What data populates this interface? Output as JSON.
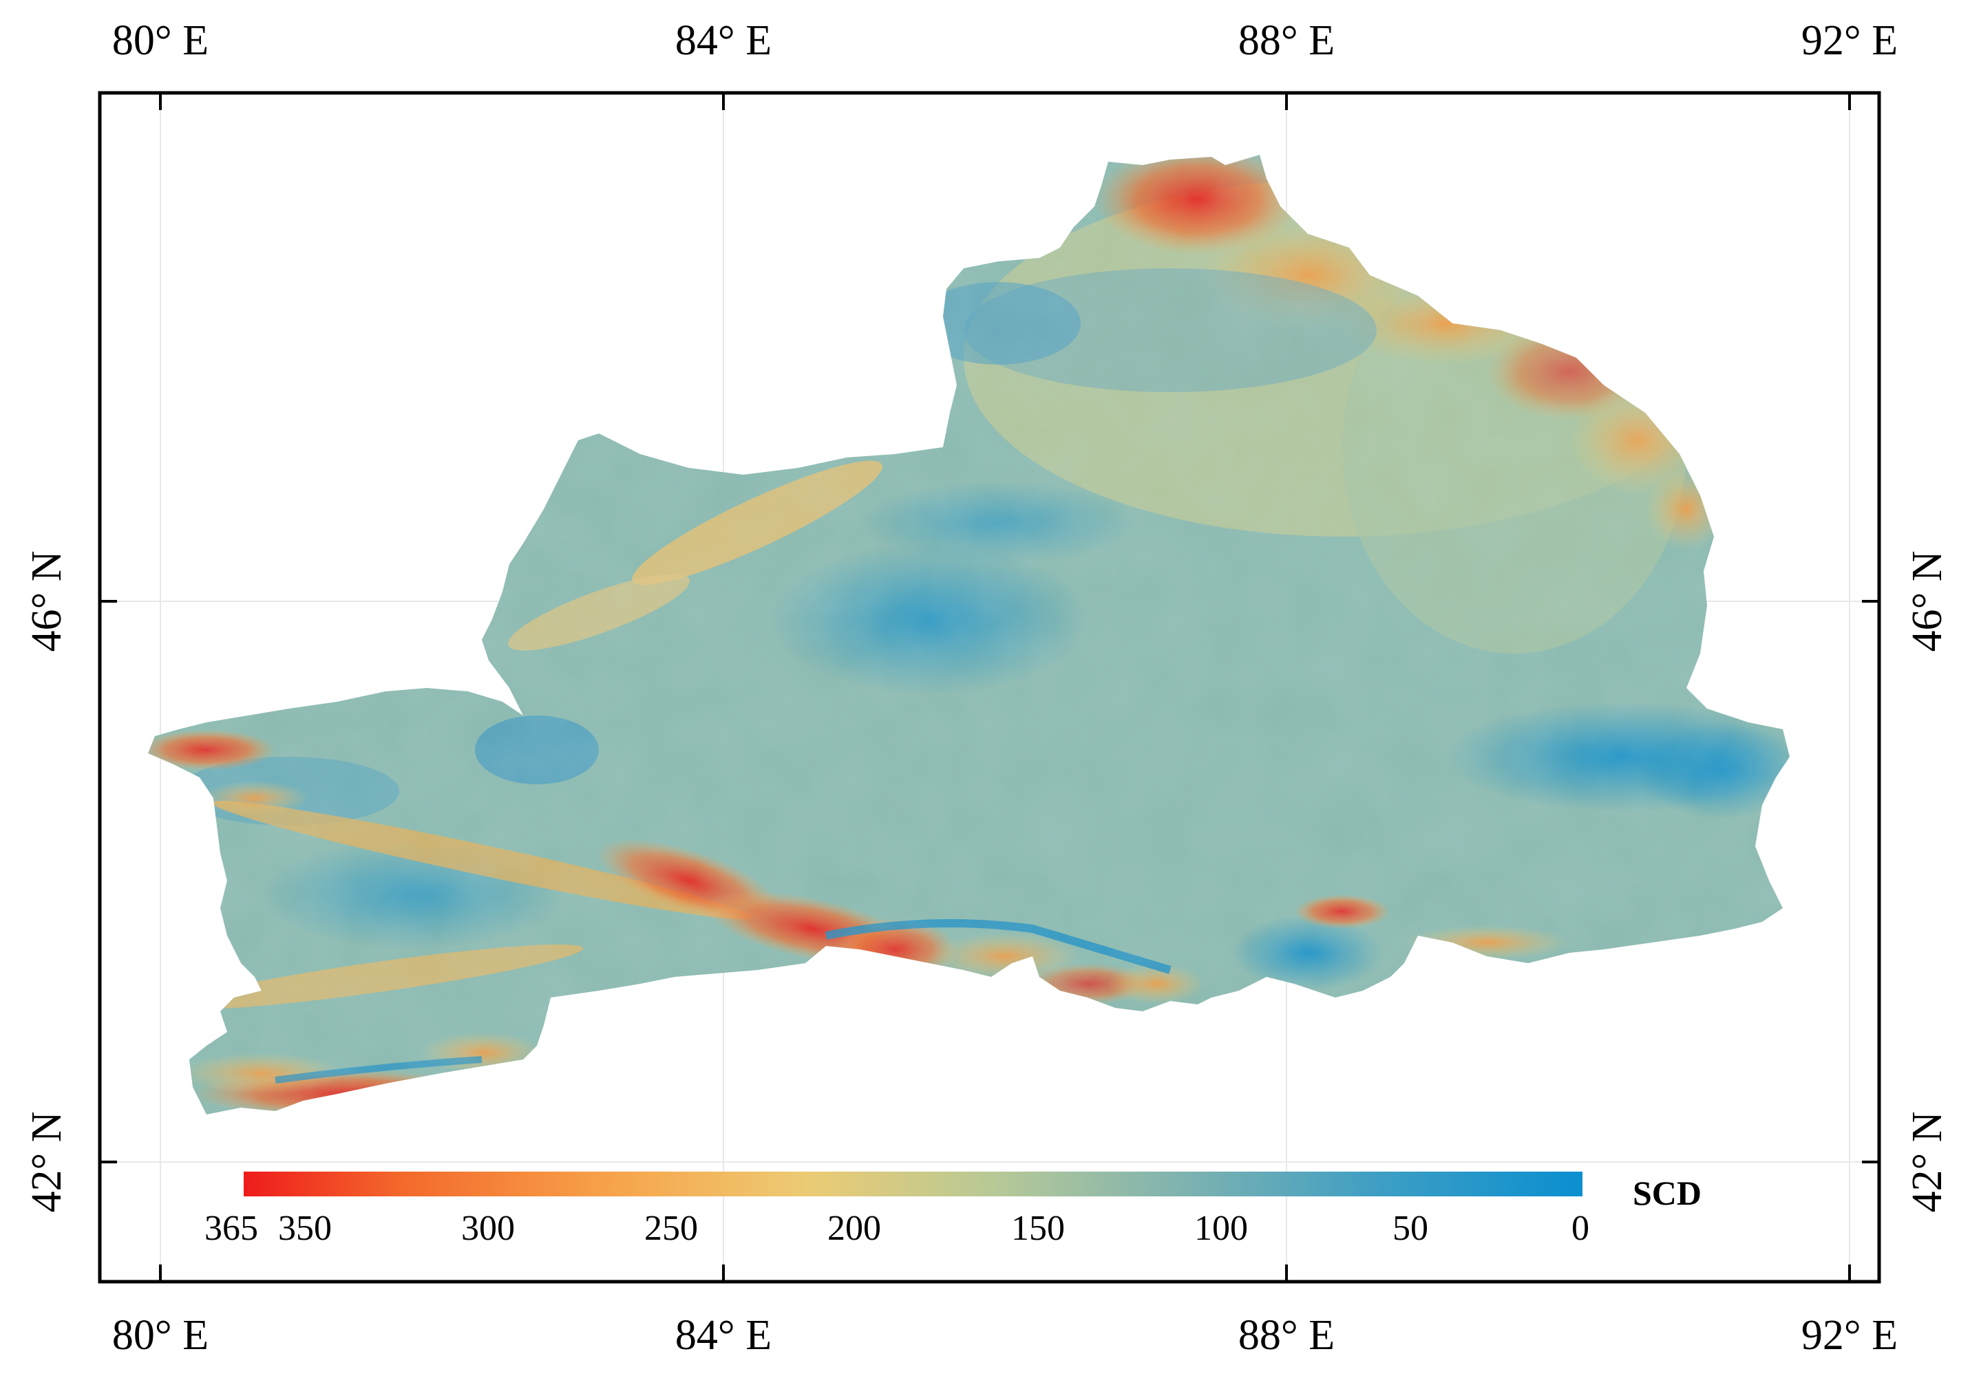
{
  "map": {
    "lon_labels": [
      "80° E",
      "84° E",
      "88° E",
      "92° E"
    ],
    "lat_labels": [
      "46° N",
      "42° N"
    ],
    "lon_range": [
      79.6,
      92.2
    ],
    "lat_range": [
      41.2,
      49.65
    ],
    "grid": true
  },
  "legend": {
    "title": "SCD",
    "ticks": [
      "365",
      "350",
      "300",
      "250",
      "200",
      "150",
      "100",
      "50",
      "0"
    ],
    "tick_values": [
      365,
      350,
      300,
      250,
      200,
      150,
      100,
      50,
      0
    ],
    "range": [
      365,
      0
    ],
    "colors": [
      "#ee1c1c",
      "#f46a2c",
      "#f7a54c",
      "#eccb74",
      "#b7c996",
      "#7fb3b0",
      "#3d9ec4",
      "#0b8fd0"
    ]
  }
}
